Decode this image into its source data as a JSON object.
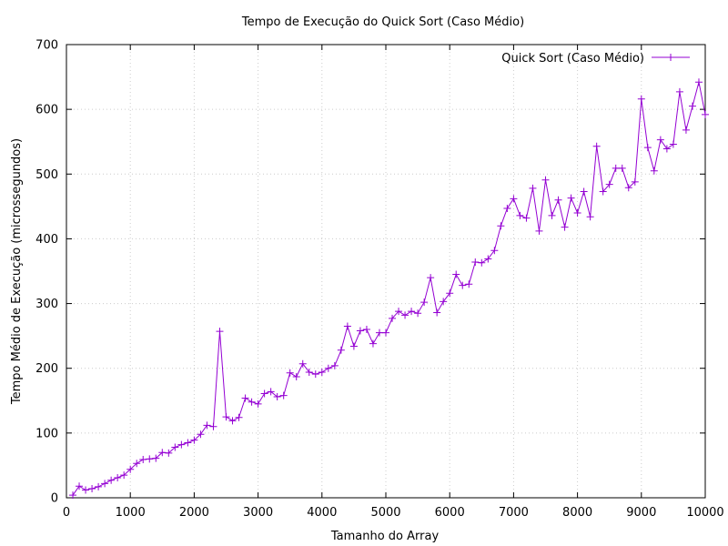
{
  "chart_data": {
    "type": "line",
    "title": "Tempo de Execução do Quick Sort (Caso Médio)",
    "xlabel": "Tamanho do Array",
    "ylabel": "Tempo Médio de Execução (microssegundos)",
    "xlim": [
      0,
      10000
    ],
    "ylim": [
      0,
      700
    ],
    "xticks": [
      0,
      1000,
      2000,
      3000,
      4000,
      5000,
      6000,
      7000,
      8000,
      9000,
      10000
    ],
    "yticks": [
      0,
      100,
      200,
      300,
      400,
      500,
      600,
      700
    ],
    "grid": true,
    "legend_position": "top-right",
    "series": [
      {
        "name": "Quick Sort (Caso Médio)",
        "color": "#9400d3",
        "marker": "plus",
        "x": [
          100,
          200,
          300,
          400,
          500,
          600,
          700,
          800,
          900,
          1000,
          1100,
          1200,
          1300,
          1400,
          1500,
          1600,
          1700,
          1800,
          1900,
          2000,
          2100,
          2200,
          2300,
          2400,
          2500,
          2600,
          2700,
          2800,
          2900,
          3000,
          3100,
          3200,
          3300,
          3400,
          3500,
          3600,
          3700,
          3800,
          3900,
          4000,
          4100,
          4200,
          4300,
          4400,
          4500,
          4600,
          4700,
          4800,
          4900,
          5000,
          5100,
          5200,
          5300,
          5400,
          5500,
          5600,
          5700,
          5800,
          5900,
          6000,
          6100,
          6200,
          6300,
          6400,
          6500,
          6600,
          6700,
          6800,
          6900,
          7000,
          7100,
          7200,
          7300,
          7400,
          7500,
          7600,
          7700,
          7800,
          7900,
          8000,
          8100,
          8200,
          8300,
          8400,
          8500,
          8600,
          8700,
          8800,
          8900,
          9000,
          9100,
          9200,
          9300,
          9400,
          9500,
          9600,
          9700,
          9800,
          9900,
          10000
        ],
        "y": [
          4,
          18,
          12,
          14,
          17,
          22,
          27,
          31,
          35,
          44,
          53,
          59,
          60,
          61,
          70,
          69,
          78,
          82,
          85,
          89,
          98,
          112,
          110,
          257,
          125,
          119,
          124,
          154,
          148,
          145,
          161,
          164,
          156,
          158,
          193,
          187,
          207,
          194,
          191,
          194,
          200,
          204,
          228,
          265,
          234,
          258,
          260,
          238,
          255,
          255,
          277,
          288,
          282,
          288,
          285,
          302,
          340,
          286,
          303,
          316,
          345,
          328,
          330,
          364,
          363,
          369,
          382,
          420,
          447,
          462,
          436,
          432,
          478,
          412,
          491,
          436,
          460,
          418,
          463,
          440,
          473,
          434,
          543,
          473,
          484,
          509,
          509,
          479,
          488,
          616,
          541,
          505,
          553,
          539,
          546,
          627,
          568,
          605,
          642,
          592
        ]
      }
    ]
  }
}
